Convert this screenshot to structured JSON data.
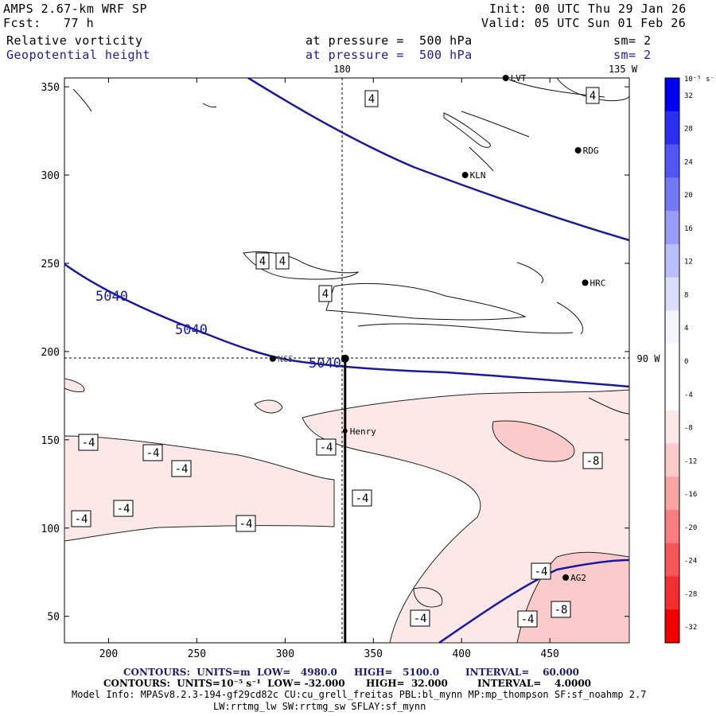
{
  "header": {
    "model": "AMPS 2.67-km WRF SP",
    "fcst_label": "Fcst:",
    "fcst_value": "77 h",
    "init": "Init: 00 UTC Thu 29 Jan 26",
    "valid": "Valid: 05 UTC Sun 01 Feb 26",
    "field1": "Relative vorticity",
    "field1_level": "at pressure =  500 hPa",
    "field1_sm": "sm= 2",
    "field2": "Geopotential height",
    "field2_level": "at pressure =  500 hPa",
    "field2_sm": "sm= 2"
  },
  "axes": {
    "x_ticks": [
      "200",
      "250",
      "300",
      "350",
      "400",
      "450"
    ],
    "y_ticks": [
      "350",
      "300",
      "250",
      "200",
      "150",
      "100",
      "50"
    ],
    "lon_top_180": "180",
    "lon_top_135w": "135 W",
    "lon_right_90w": "90 W"
  },
  "map": {
    "stations": [
      {
        "name": "LVT",
        "x": 425,
        "y": 355
      },
      {
        "name": "RDG",
        "x": 466,
        "y": 314
      },
      {
        "name": "KLN",
        "x": 402,
        "y": 300
      },
      {
        "name": "HRC",
        "x": 470,
        "y": 239
      },
      {
        "name": "NCS",
        "x": 293,
        "y": 196
      },
      {
        "name": "Henry",
        "x": 334,
        "y": 155
      },
      {
        "name": "AG2",
        "x": 459,
        "y": 72
      }
    ],
    "height_contour_labels": [
      "5040",
      "5040",
      "5040"
    ],
    "vort_labels": [
      "4",
      "4",
      "4",
      "4",
      "4",
      "-4",
      "-4",
      "-4",
      "-4",
      "-4",
      "-4",
      "-4",
      "-4",
      "-4",
      "-4",
      "-4",
      "-8",
      "-8"
    ],
    "cross_section_start": {
      "x": 334,
      "y": 196
    },
    "cross_section_end": {
      "x": 334,
      "y": 35
    }
  },
  "colorbar": {
    "unit": "10⁻⁵ s⁻¹",
    "labels": [
      "32",
      "28",
      "24",
      "20",
      "16",
      "12",
      "8",
      "4",
      "0",
      "-4",
      "-8",
      "-12",
      "-16",
      "-20",
      "-24",
      "-28",
      "-32"
    ],
    "colors": [
      "#0000f0",
      "#2a2ff2",
      "#5055f4",
      "#7478f6",
      "#9a9cf8",
      "#bcbef9",
      "#dcdcfb",
      "#f4f4fd",
      "#ffffff",
      "#ffffff",
      "#fde8e8",
      "#fbcaca",
      "#f9a4a4",
      "#f77e7e",
      "#f55656",
      "#f32e2e",
      "#f00000"
    ]
  },
  "footer": {
    "line1_a": "CONTOURS:  UNITS=m  LOW=   4980.0",
    "line1_b": "HIGH=   5100.0",
    "line1_c": "INTERVAL=    60.000",
    "line2_a": "CONTOURS:  UNITS=10⁻⁵ s⁻¹  LOW= -32.000",
    "line2_b": "HIGH=  32.000",
    "line2_c": "INTERVAL=    4.0000",
    "line3": "Model Info: MPASv8.2.3-194-gf29cd82c CU:cu_grell_freitas PBL:bl_mynn MP:mp_thompson SF:sf_noahmp 2.7",
    "line4": "LW:rrtmg_lw SW:rrtmg_sw SFLAY:sf_mynn"
  }
}
